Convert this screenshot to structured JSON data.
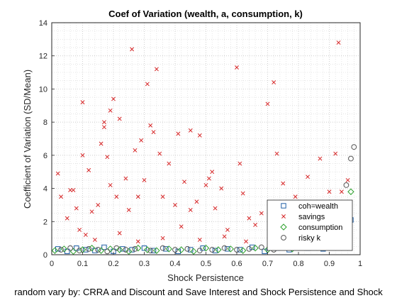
{
  "chart_data": {
    "type": "scatter",
    "title": "Coef of Variation (wealth, a, consumption, k)",
    "xlabel": "Shock Persistence",
    "ylabel": "Coefficient of Variation (SD/Mean)",
    "footer": "random vary by: CRRA and Discount and Save Interest and Shock Persistence and Shock",
    "xlim": [
      0,
      1
    ],
    "ylim": [
      0,
      14
    ],
    "xticks": [
      "0",
      "0.1",
      "0.2",
      "0.3",
      "0.4",
      "0.5",
      "0.6",
      "0.7",
      "0.8",
      "0.9",
      "1"
    ],
    "yticks": [
      "0",
      "2",
      "4",
      "6",
      "8",
      "10",
      "12",
      "14"
    ],
    "grid": "minor-dotted",
    "legend_position": "bottom-right",
    "series": [
      {
        "name": "coh=wealth",
        "marker": "square",
        "color": "#1f5fa6",
        "points": [
          [
            0.02,
            0.35
          ],
          [
            0.05,
            0.2
          ],
          [
            0.08,
            0.4
          ],
          [
            0.11,
            0.3
          ],
          [
            0.14,
            0.25
          ],
          [
            0.17,
            0.45
          ],
          [
            0.2,
            0.2
          ],
          [
            0.23,
            0.35
          ],
          [
            0.26,
            0.3
          ],
          [
            0.3,
            0.4
          ],
          [
            0.33,
            0.25
          ],
          [
            0.37,
            0.35
          ],
          [
            0.41,
            0.2
          ],
          [
            0.45,
            0.3
          ],
          [
            0.49,
            0.4
          ],
          [
            0.53,
            0.25
          ],
          [
            0.57,
            0.35
          ],
          [
            0.61,
            0.3
          ],
          [
            0.65,
            0.45
          ],
          [
            0.69,
            0.2
          ],
          [
            0.73,
            0.4
          ],
          [
            0.77,
            0.3
          ],
          [
            0.8,
            0.55
          ],
          [
            0.83,
            0.4
          ],
          [
            0.86,
            0.6
          ],
          [
            0.88,
            0.35
          ],
          [
            0.9,
            0.8
          ],
          [
            0.92,
            0.5
          ],
          [
            0.94,
            1.1
          ],
          [
            0.95,
            0.7
          ],
          [
            0.96,
            1.5
          ],
          [
            0.97,
            2.1
          ]
        ]
      },
      {
        "name": "savings",
        "marker": "x",
        "color": "#d62728",
        "points": [
          [
            0.02,
            4.9
          ],
          [
            0.03,
            3.5
          ],
          [
            0.05,
            2.2
          ],
          [
            0.06,
            3.9
          ],
          [
            0.07,
            3.9
          ],
          [
            0.08,
            2.8
          ],
          [
            0.09,
            1.5
          ],
          [
            0.1,
            6.0
          ],
          [
            0.1,
            9.2
          ],
          [
            0.12,
            5.1
          ],
          [
            0.13,
            2.6
          ],
          [
            0.15,
            3.0
          ],
          [
            0.16,
            6.7
          ],
          [
            0.17,
            7.7
          ],
          [
            0.17,
            8.0
          ],
          [
            0.18,
            5.9
          ],
          [
            0.19,
            4.2
          ],
          [
            0.19,
            8.7
          ],
          [
            0.2,
            9.4
          ],
          [
            0.21,
            3.5
          ],
          [
            0.22,
            8.2
          ],
          [
            0.24,
            4.6
          ],
          [
            0.25,
            2.7
          ],
          [
            0.26,
            12.4
          ],
          [
            0.27,
            6.3
          ],
          [
            0.28,
            3.5
          ],
          [
            0.29,
            6.9
          ],
          [
            0.3,
            4.5
          ],
          [
            0.31,
            10.3
          ],
          [
            0.32,
            7.8
          ],
          [
            0.33,
            7.4
          ],
          [
            0.34,
            11.2
          ],
          [
            0.35,
            6.1
          ],
          [
            0.36,
            3.5
          ],
          [
            0.38,
            5.5
          ],
          [
            0.4,
            3.0
          ],
          [
            0.41,
            7.3
          ],
          [
            0.43,
            4.4
          ],
          [
            0.45,
            2.7
          ],
          [
            0.45,
            7.5
          ],
          [
            0.47,
            3.2
          ],
          [
            0.48,
            7.2
          ],
          [
            0.5,
            4.2
          ],
          [
            0.51,
            4.6
          ],
          [
            0.52,
            5.0
          ],
          [
            0.53,
            2.8
          ],
          [
            0.55,
            4.0
          ],
          [
            0.57,
            1.5
          ],
          [
            0.6,
            11.3
          ],
          [
            0.61,
            5.5
          ],
          [
            0.62,
            3.7
          ],
          [
            0.64,
            2.2
          ],
          [
            0.66,
            1.8
          ],
          [
            0.68,
            2.5
          ],
          [
            0.7,
            9.1
          ],
          [
            0.72,
            10.4
          ],
          [
            0.73,
            6.1
          ],
          [
            0.75,
            4.3
          ],
          [
            0.77,
            2.6
          ],
          [
            0.79,
            3.5
          ],
          [
            0.81,
            1.9
          ],
          [
            0.83,
            4.7
          ],
          [
            0.85,
            3.0
          ],
          [
            0.87,
            5.8
          ],
          [
            0.89,
            2.4
          ],
          [
            0.9,
            3.8
          ],
          [
            0.91,
            2.7
          ],
          [
            0.92,
            6.1
          ],
          [
            0.93,
            12.8
          ],
          [
            0.94,
            3.8
          ],
          [
            0.95,
            2.9
          ],
          [
            0.96,
            4.5
          ],
          [
            0.11,
            1.2
          ],
          [
            0.14,
            0.9
          ],
          [
            0.22,
            1.3
          ],
          [
            0.28,
            0.8
          ],
          [
            0.36,
            1.0
          ],
          [
            0.42,
            1.7
          ],
          [
            0.48,
            0.9
          ],
          [
            0.56,
            1.1
          ],
          [
            0.63,
            0.8
          ],
          [
            0.71,
            1.3
          ],
          [
            0.78,
            1.6
          ],
          [
            0.84,
            1.0
          ],
          [
            0.88,
            1.9
          ],
          [
            0.93,
            2.2
          ]
        ]
      },
      {
        "name": "consumption",
        "marker": "diamond",
        "color": "#2ca02c",
        "points": [
          [
            0.01,
            0.25
          ],
          [
            0.04,
            0.35
          ],
          [
            0.07,
            0.2
          ],
          [
            0.1,
            0.3
          ],
          [
            0.13,
            0.4
          ],
          [
            0.16,
            0.25
          ],
          [
            0.19,
            0.35
          ],
          [
            0.22,
            0.3
          ],
          [
            0.25,
            0.2
          ],
          [
            0.28,
            0.4
          ],
          [
            0.31,
            0.3
          ],
          [
            0.34,
            0.25
          ],
          [
            0.38,
            0.35
          ],
          [
            0.42,
            0.3
          ],
          [
            0.46,
            0.2
          ],
          [
            0.5,
            0.4
          ],
          [
            0.54,
            0.3
          ],
          [
            0.58,
            0.35
          ],
          [
            0.62,
            0.25
          ],
          [
            0.66,
            0.4
          ],
          [
            0.7,
            0.3
          ],
          [
            0.74,
            0.5
          ],
          [
            0.78,
            0.35
          ],
          [
            0.81,
            0.6
          ],
          [
            0.84,
            0.5
          ],
          [
            0.87,
            0.8
          ],
          [
            0.89,
            1.0
          ],
          [
            0.91,
            1.3
          ],
          [
            0.93,
            1.6
          ],
          [
            0.94,
            2.2
          ],
          [
            0.96,
            3.0
          ],
          [
            0.97,
            3.8
          ]
        ]
      },
      {
        "name": "risky k",
        "marker": "circle",
        "color": "#555555",
        "points": [
          [
            0.03,
            0.3
          ],
          [
            0.06,
            0.4
          ],
          [
            0.09,
            0.25
          ],
          [
            0.12,
            0.35
          ],
          [
            0.15,
            0.3
          ],
          [
            0.18,
            0.2
          ],
          [
            0.21,
            0.4
          ],
          [
            0.24,
            0.3
          ],
          [
            0.27,
            0.35
          ],
          [
            0.32,
            0.25
          ],
          [
            0.36,
            0.4
          ],
          [
            0.4,
            0.3
          ],
          [
            0.44,
            0.35
          ],
          [
            0.48,
            0.25
          ],
          [
            0.52,
            0.3
          ],
          [
            0.56,
            0.4
          ],
          [
            0.6,
            0.3
          ],
          [
            0.64,
            0.35
          ],
          [
            0.68,
            0.45
          ],
          [
            0.72,
            0.3
          ],
          [
            0.76,
            0.5
          ],
          [
            0.8,
            0.7
          ],
          [
            0.84,
            0.8
          ],
          [
            0.88,
            1.1
          ],
          [
            0.91,
            1.5
          ],
          [
            0.93,
            2.0
          ],
          [
            0.95,
            2.9
          ],
          [
            0.955,
            4.2
          ],
          [
            0.97,
            5.8
          ],
          [
            0.98,
            6.5
          ]
        ]
      }
    ]
  }
}
